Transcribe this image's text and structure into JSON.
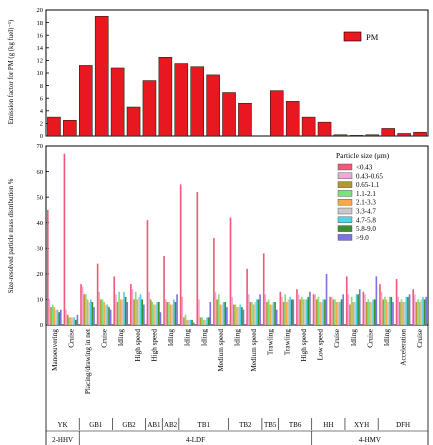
{
  "chart_data": [
    {
      "type": "bar",
      "ylabel": "Emission factor for PM (g (kg fuel)⁻¹)",
      "ylim": [
        0,
        20
      ],
      "yticks": [
        0,
        2,
        4,
        6,
        8,
        10,
        12,
        14,
        16,
        18,
        20
      ],
      "legend": {
        "position": "top-right",
        "entries": [
          "PM"
        ]
      },
      "series": [
        {
          "name": "PM",
          "color": "#e8191e",
          "values": [
            3.0,
            2.5,
            11.2,
            19.0,
            10.8,
            4.6,
            8.8,
            12.5,
            11.5,
            11.0,
            9.7,
            6.9,
            5.2,
            0,
            7.2,
            5.5,
            3.0,
            2.2,
            0.2,
            0.1,
            0.2,
            1.2,
            0.4,
            0.6
          ]
        }
      ]
    },
    {
      "type": "bar",
      "ylabel": "Size-resolved particle mass distribution %",
      "ylim": [
        0,
        70
      ],
      "yticks": [
        0,
        10,
        20,
        30,
        40,
        50,
        60,
        70
      ],
      "grid": false,
      "legend": {
        "position": "top-right",
        "title": "Particle size (μm)"
      },
      "categories": [
        "Manoeuvering",
        "Cruise",
        "Placing/drawing in net",
        "Cruise",
        "Idling",
        "High speed",
        "High speed",
        "Idling",
        "Idling",
        "Idling",
        "Medium speed",
        "Idling",
        "Medium speed",
        "Trawling",
        "Trawling",
        "High speed",
        "Low speed",
        "Cruise",
        "Idling",
        "Cruise",
        "Idling",
        "Acceleration",
        "Cruise"
      ],
      "groups_row1": [
        "YK",
        "GB1",
        "GB2",
        "AB1",
        "AB2",
        "TB1",
        "TB2",
        "TB5",
        "TB6",
        "HH",
        "XYH",
        "DFH"
      ],
      "groups_row2": [
        "2-HHV",
        "4-LDF",
        "4-HMV"
      ],
      "series": [
        {
          "name": "<0.43",
          "color": "#f0597a",
          "values": [
            45,
            67,
            16,
            24,
            19,
            16,
            41,
            27,
            55,
            52,
            34,
            42,
            22,
            28,
            13,
            14,
            12,
            11,
            19,
            13,
            16,
            18,
            14
          ]
        },
        {
          "name": "0.43-0.65",
          "color": "#f2a7d9",
          "values": [
            10,
            6,
            15,
            13,
            12,
            14,
            13,
            10,
            11,
            10,
            13,
            11,
            12,
            12,
            11,
            12,
            12,
            11,
            12,
            12,
            13,
            11,
            12
          ]
        },
        {
          "name": "0.65-1.1",
          "color": "#b8952e",
          "values": [
            7,
            4,
            12,
            10,
            9,
            10,
            10,
            9,
            3,
            3,
            10,
            8,
            9,
            9,
            9,
            10,
            10,
            10,
            8,
            9,
            10,
            9,
            9
          ]
        },
        {
          "name": "1.1-2.1",
          "color": "#7ee07e",
          "values": [
            8,
            3,
            12,
            10,
            13,
            13,
            9,
            9,
            4,
            3,
            12,
            8,
            9,
            10,
            12,
            11,
            11,
            10,
            11,
            10,
            11,
            10,
            10
          ]
        },
        {
          "name": "2.1-3.3",
          "color": "#f3a94f",
          "values": [
            7,
            3,
            10,
            9,
            10,
            10,
            8,
            8,
            2,
            2,
            8,
            7,
            8,
            8,
            9,
            10,
            9,
            9,
            9,
            9,
            10,
            9,
            9
          ]
        },
        {
          "name": "3.3-4.7",
          "color": "#c9c9c9",
          "values": [
            6,
            3,
            9,
            8,
            10,
            11,
            8,
            8,
            2,
            2,
            8,
            7,
            9,
            8,
            10,
            10,
            9,
            9,
            9,
            9,
            9,
            9,
            10
          ]
        },
        {
          "name": "4.7-5.8",
          "color": "#4fd3e6",
          "values": [
            6,
            3,
            10,
            8,
            13,
            12,
            9,
            10,
            2,
            3,
            9,
            8,
            10,
            9,
            11,
            10,
            10,
            9,
            12,
            10,
            11,
            11,
            11
          ]
        },
        {
          "name": "5.8-9.0",
          "color": "#3a8f2e",
          "values": [
            5,
            2,
            9,
            7,
            11,
            10,
            9,
            9,
            2,
            3,
            9,
            7,
            10,
            9,
            10,
            11,
            10,
            10,
            12,
            10,
            11,
            11,
            10
          ]
        },
        {
          "name": ">9.0",
          "color": "#7b72e6",
          "values": [
            6,
            4,
            7,
            6,
            9,
            8,
            5,
            12,
            1,
            9,
            7,
            6,
            12,
            6,
            10,
            13,
            20,
            12,
            14,
            19,
            9,
            12,
            11
          ]
        }
      ]
    }
  ]
}
